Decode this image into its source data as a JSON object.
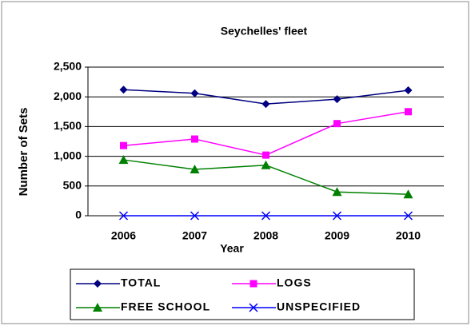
{
  "chart_data": {
    "type": "line",
    "title": "Seychelles' fleet",
    "x_label": "Year",
    "y_label": "Number of Sets",
    "categories": [
      "2006",
      "2007",
      "2008",
      "2009",
      "2010"
    ],
    "series": [
      {
        "name": "TOTAL",
        "color": "#000080",
        "marker": "diamond",
        "values": [
          2120,
          2060,
          1880,
          1960,
          2110
        ]
      },
      {
        "name": "LOGS",
        "color": "#ff00ff",
        "marker": "square",
        "values": [
          1180,
          1290,
          1020,
          1550,
          1750
        ]
      },
      {
        "name": "FREE SCHOOL",
        "color": "#008000",
        "marker": "triangle",
        "values": [
          940,
          780,
          850,
          400,
          360
        ]
      },
      {
        "name": "UNSPECIFIED",
        "color": "#0000ff",
        "marker": "x",
        "values": [
          0,
          0,
          0,
          0,
          0
        ]
      }
    ],
    "ylim": [
      0,
      2500
    ],
    "yticks": [
      0,
      500,
      {
        "value": 1000,
        "label": "1,000"
      },
      {
        "value": 1500,
        "label": "1,500"
      },
      {
        "value": 2000,
        "label": "2,000"
      },
      {
        "value": 2500,
        "label": "2,500"
      }
    ],
    "grid": true,
    "legend": "bottom"
  }
}
